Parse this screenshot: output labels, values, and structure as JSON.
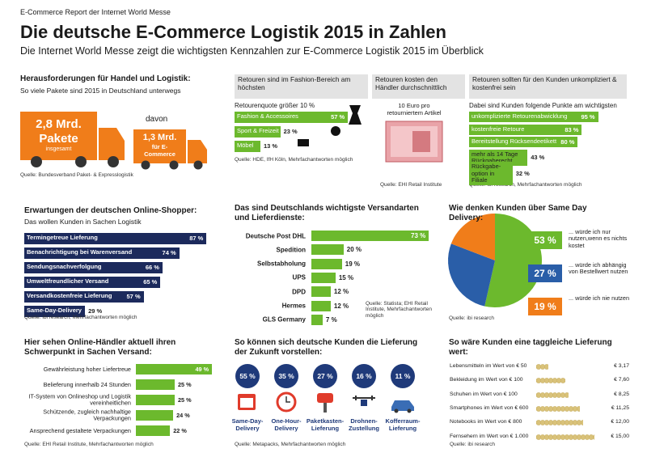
{
  "header": {
    "kicker": "E-Commerce Report der Internet World Messe",
    "title": "Die deutsche E-Commerce Logistik 2015 in Zahlen",
    "subtitle": "Die Internet World Messe zeigt die wichtigsten Kennzahlen zur E-Commerce Logistik 2015 im Überblick"
  },
  "parcels": {
    "title": "Herausforderungen für Handel und Logistik:",
    "subtitle": "So viele Pakete sind 2015 in Deutschland unterwegs",
    "total": {
      "amount": "2,8 Mrd.",
      "unit": "Pakete",
      "note": "insgesamt"
    },
    "share_intro": "davon",
    "ecommerce": {
      "amount": "1,3 Mrd.",
      "note": "für E-Commerce"
    },
    "source": "Quelle: Bundesverband Paket- & Expresslogistik"
  },
  "returns_fashion": {
    "header": "Retouren sind im Fashion-Bereich am höchsten",
    "label": "Retourenquote größer 10 %",
    "color": "#6cb92d",
    "bars": [
      {
        "label": "Fashion & Accessoires",
        "value": 57,
        "value_label": "57 %"
      },
      {
        "label": "Sport & Freizeit",
        "value": 23,
        "value_label": "23 %"
      },
      {
        "label": "Möbel",
        "value": 13,
        "value_label": "13 %"
      }
    ],
    "source": "Quelle: HDE, IfH Köln, Mehrfachantworten möglich"
  },
  "returns_cost": {
    "header": "Retouren kosten den Händler durchschnittlich",
    "text": "10 Euro pro retourniertem Artikel",
    "source": "Quelle: EHI Retail Institute"
  },
  "returns_wishes": {
    "header": "Retouren sollten für den Kunden unkompliziert & kostenfrei sein",
    "label": "Dabei sind Kunden folgende Punkte am wichtigsten",
    "color": "#6cb92d",
    "bars": [
      {
        "label": "unkomplizierte Retourenabwicklung",
        "value": 95,
        "value_label": "95 %"
      },
      {
        "label": "kostenfreie Retoure",
        "value": 83,
        "value_label": "83 %"
      },
      {
        "label": "Bereitstellung Rücksendeetikett",
        "value": 80,
        "value_label": "80 %"
      },
      {
        "label": "mehr als 14 Tage Rückgaberecht",
        "value": 43,
        "value_label": "43 %"
      },
      {
        "label": "Rückgabe-option in Filiale",
        "value": 32,
        "value_label": "32 %"
      }
    ],
    "source": "Quelle: ibi research, Mehrfachantworten möglich"
  },
  "expectations": {
    "title": "Erwartungen der deutschen Online-Shopper:",
    "subtitle": "Das wollen Kunden in Sachen Logistik",
    "color": "#1c2a5c",
    "bars": [
      {
        "label": "Termingetreue Lieferung",
        "value": 87,
        "value_label": "87 %"
      },
      {
        "label": "Benachrichtigung bei Warenversand",
        "value": 74,
        "value_label": "74 %"
      },
      {
        "label": "Sendungsnachverfolgung",
        "value": 66,
        "value_label": "66 %"
      },
      {
        "label": "Umweltfreundlicher Versand",
        "value": 65,
        "value_label": "65 %"
      },
      {
        "label": "Versandkostenfreie Lieferung",
        "value": 57,
        "value_label": "57 %"
      },
      {
        "label": "Same-Day-Delivery",
        "value": 29,
        "value_label": "29 %"
      }
    ],
    "source": "Quelle: ibi research, Mehrfachantworten möglich"
  },
  "carriers": {
    "title": "Das sind Deutschlands wichtigste Versandarten und Lieferdienste:",
    "color": "#6cb92d",
    "bars": [
      {
        "label": "Deutsche Post DHL",
        "value": 73,
        "value_label": "73 %"
      },
      {
        "label": "Spedition",
        "value": 20,
        "value_label": "20 %"
      },
      {
        "label": "Selbstabholung",
        "value": 19,
        "value_label": "19 %"
      },
      {
        "label": "UPS",
        "value": 15,
        "value_label": "15 %"
      },
      {
        "label": "DPD",
        "value": 12,
        "value_label": "12 %"
      },
      {
        "label": "Hermes",
        "value": 12,
        "value_label": "12 %"
      },
      {
        "label": "GLS Germany",
        "value": 7,
        "value_label": "7 %"
      }
    ],
    "source": "Quelle: Statista; EHI Retail Institute, Mehrfachantworten möglich"
  },
  "same_day": {
    "title": "Wie denken Kunden über Same Day Delivery:",
    "slices": [
      {
        "value": 53,
        "value_label": "53 %",
        "label": "... würde ich nur nutzen,wenn es nichts kostet",
        "color": "#6cb92d"
      },
      {
        "value": 27,
        "value_label": "27 %",
        "label": "... würde ich abhängig von Bestellwert nutzen",
        "color": "#2a5ea8"
      },
      {
        "value": 19,
        "value_label": "19 %",
        "label": "... würde ich nie nutzen",
        "color": "#f07d1a"
      }
    ],
    "source": "Quelle: ibi research"
  },
  "merchant_focus": {
    "title": "Hier sehen Online-Händler aktuell ihren Schwerpunkt in Sachen Versand:",
    "color": "#6cb92d",
    "bars": [
      {
        "label": "Gewährleistung hoher Liefertreue",
        "value": 49,
        "value_label": "49 %"
      },
      {
        "label": "Belieferung innerhalb 24 Stunden",
        "value": 25,
        "value_label": "25 %"
      },
      {
        "label": "IT-System von Onlineshop und Logistik vereinheitlichen",
        "value": 25,
        "value_label": "25 %"
      },
      {
        "label": "Schützende, zugleich nachhaltige Verpackungen",
        "value": 24,
        "value_label": "24 %"
      },
      {
        "label": "Ansprechend gestaltete Verpackungen",
        "value": 22,
        "value_label": "22 %"
      }
    ],
    "source": "Quelle: EHI Retail Institute, Mehrfachantworten möglich"
  },
  "future_delivery": {
    "title": "So können sich deutsche Kunden die Lieferung der Zukunft vorstellen:",
    "items": [
      {
        "value": 55,
        "value_label": "55 %",
        "label": "Same-Day-Delivery"
      },
      {
        "value": 35,
        "value_label": "35 %",
        "label": "One-Hour-Delivery"
      },
      {
        "value": 27,
        "value_label": "27 %",
        "label": "Paketkasten-Lieferung"
      },
      {
        "value": 16,
        "value_label": "16 %",
        "label": "Drohnen-Zustellung"
      },
      {
        "value": 11,
        "value_label": "11 %",
        "label": "Kofferraum-Lieferung"
      }
    ],
    "source": "Quelle: Metapacks, Mehrfachantworten möglich"
  },
  "same_day_value": {
    "title": "So wäre Kunden eine taggleiche Lieferung wert:",
    "rows": [
      {
        "label": "Lebensmitteln im Wert von € 50",
        "value": 3.17,
        "value_label": "€ 3,17"
      },
      {
        "label": "Bekleidung im Wert von € 100",
        "value": 7.6,
        "value_label": "€ 7,60"
      },
      {
        "label": "Schuhen im Wert von € 100",
        "value": 8.25,
        "value_label": "€ 8,25"
      },
      {
        "label": "Smartphones im Wert von € 600",
        "value": 11.25,
        "value_label": "€ 11,25"
      },
      {
        "label": "Notebooks im Wert von € 800",
        "value": 12,
        "value_label": "€ 12,00"
      },
      {
        "label": "Fernsehern im Wert von € 1.000",
        "value": 15,
        "value_label": "€ 15,00"
      }
    ],
    "source": "Quelle: ibi research"
  }
}
